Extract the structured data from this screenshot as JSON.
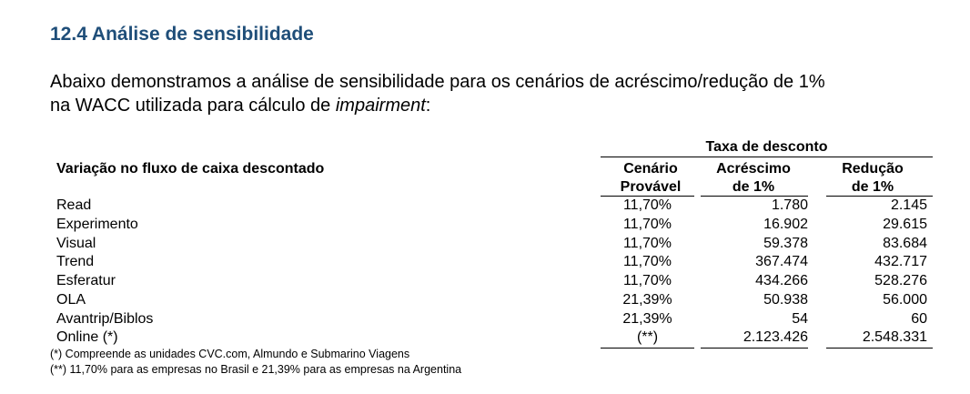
{
  "section": {
    "heading": "12.4 Análise de sensibilidade",
    "intro_line1": "Abaixo demonstramos a análise de sensibilidade para os cenários de acréscimo/redução de 1%",
    "intro_line2_prefix": "na WACC utilizada para cálculo de ",
    "intro_line2_italic": "impairment",
    "intro_line2_suffix": ":"
  },
  "table": {
    "group_header": "Taxa de desconto",
    "row_header": "Variação no fluxo de caixa descontado",
    "col1_line1": "Cenário",
    "col1_line2": "Provável",
    "col2_line1": "Acréscimo",
    "col2_line2": "de 1%",
    "col3_line1": "Redução",
    "col3_line2": "de 1%",
    "rows": [
      {
        "name": "Read",
        "rate": "11,70%",
        "plus": "1.780",
        "minus": "2.145"
      },
      {
        "name": "Experimento",
        "rate": "11,70%",
        "plus": "16.902",
        "minus": "29.615"
      },
      {
        "name": "Visual",
        "rate": "11,70%",
        "plus": "59.378",
        "minus": "83.684"
      },
      {
        "name": "Trend",
        "rate": "11,70%",
        "plus": "367.474",
        "minus": "432.717"
      },
      {
        "name": "Esferatur",
        "rate": "11,70%",
        "plus": "434.266",
        "minus": "528.276"
      },
      {
        "name": "OLA",
        "rate": "21,39%",
        "plus": "50.938",
        "minus": "56.000"
      },
      {
        "name": "Avantrip/Biblos",
        "rate": "21,39%",
        "plus": "54",
        "minus": "60"
      },
      {
        "name": "Online (*)",
        "rate": "(**)",
        "plus": "2.123.426",
        "minus": "2.548.331"
      }
    ]
  },
  "notes": {
    "note1": "(*) Compreende as unidades CVC.com, Almundo e Submarino Viagens",
    "note2": "(**) 11,70% para as empresas no Brasil e 21,39% para as empresas na Argentina"
  }
}
